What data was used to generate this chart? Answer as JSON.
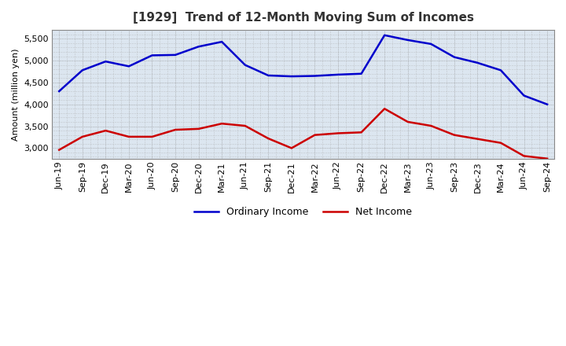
{
  "title": "[1929]  Trend of 12-Month Moving Sum of Incomes",
  "ylabel": "Amount (million yen)",
  "background_color": "#ffffff",
  "plot_bg_color": "#dce6f0",
  "grid_color": "#aaaaaa",
  "x_labels": [
    "Jun-19",
    "Sep-19",
    "Dec-19",
    "Mar-20",
    "Jun-20",
    "Sep-20",
    "Dec-20",
    "Mar-21",
    "Jun-21",
    "Sep-21",
    "Dec-21",
    "Mar-22",
    "Jun-22",
    "Sep-22",
    "Dec-22",
    "Mar-23",
    "Jun-23",
    "Sep-23",
    "Dec-23",
    "Mar-24",
    "Jun-24",
    "Sep-24"
  ],
  "ordinary_income": [
    4300,
    4780,
    4980,
    4870,
    5120,
    5130,
    5320,
    5430,
    4900,
    4660,
    4640,
    4650,
    4680,
    4700,
    5580,
    5470,
    5380,
    5080,
    4950,
    4780,
    4200,
    4000
  ],
  "net_income": [
    2960,
    3260,
    3400,
    3260,
    3260,
    3420,
    3440,
    3560,
    3510,
    3220,
    3000,
    3300,
    3340,
    3360,
    3900,
    3600,
    3510,
    3300,
    3210,
    3120,
    2820,
    2760
  ],
  "ordinary_color": "#0000cc",
  "net_color": "#cc0000",
  "ylim_min": 2750,
  "ylim_max": 5700,
  "yticks": [
    3000,
    3500,
    4000,
    4500,
    5000,
    5500
  ],
  "line_width": 1.8,
  "title_fontsize": 11,
  "ylabel_fontsize": 8,
  "tick_fontsize": 8,
  "legend_ordinary": "Ordinary Income",
  "legend_net": "Net Income"
}
